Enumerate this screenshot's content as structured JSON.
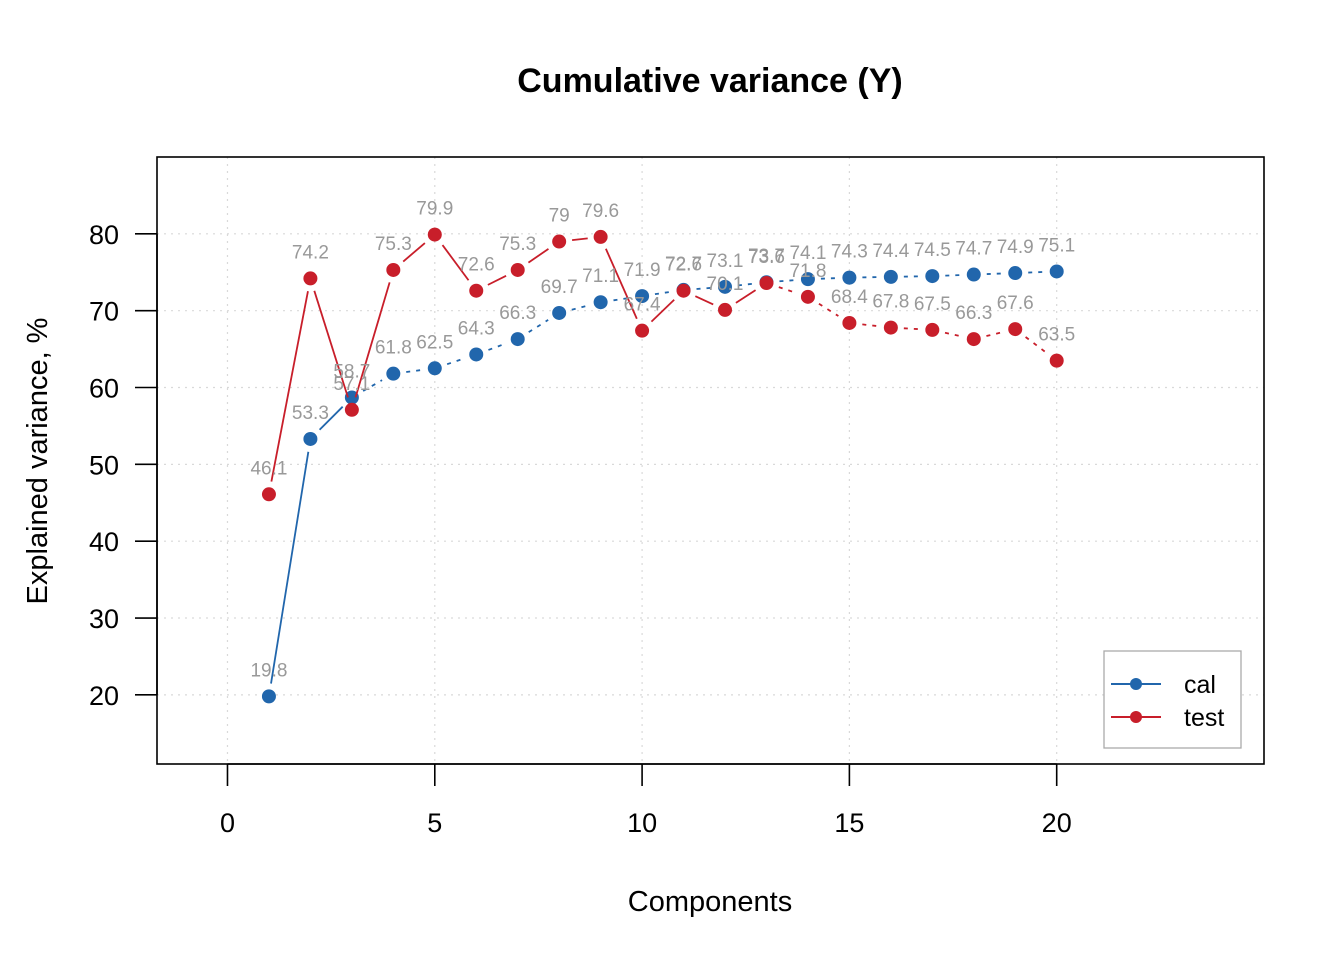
{
  "chart_data": {
    "type": "line",
    "title": "Cumulative variance (Y)",
    "xlabel": "Components",
    "ylabel": "Explained variance, %",
    "xlim": [
      -1.7,
      25
    ],
    "ylim": [
      11,
      90
    ],
    "x_ticks": [
      0,
      5,
      10,
      15,
      20
    ],
    "y_ticks": [
      20,
      30,
      40,
      50,
      60,
      70,
      80
    ],
    "grid": true,
    "legend_position": "bottom-right",
    "x": [
      1,
      2,
      3,
      4,
      5,
      6,
      7,
      8,
      9,
      10,
      11,
      12,
      13,
      14,
      15,
      16,
      17,
      18,
      19,
      20
    ],
    "series": [
      {
        "name": "cal",
        "color": "#2166ac",
        "values": [
          19.8,
          53.3,
          58.7,
          61.8,
          62.5,
          64.3,
          66.3,
          69.7,
          71.1,
          71.9,
          72.7,
          73.1,
          73.7,
          74.1,
          74.3,
          74.4,
          74.5,
          74.7,
          74.9,
          75.1
        ],
        "labels": [
          "19.8",
          "53.3",
          "58.7",
          "61.8",
          "62.5",
          "64.3",
          "66.3",
          "69.7",
          "71.1",
          "71.9",
          "72.7",
          "73.1",
          "73.7",
          "74.1",
          "74.3",
          "74.4",
          "74.5",
          "74.7",
          "74.9",
          "75.1"
        ]
      },
      {
        "name": "test",
        "color": "#c81e2a",
        "values": [
          46.1,
          74.2,
          57.1,
          75.3,
          79.9,
          72.6,
          75.3,
          79.0,
          79.6,
          67.4,
          72.6,
          70.1,
          73.6,
          71.8,
          68.4,
          67.8,
          67.5,
          66.3,
          67.6,
          63.5
        ],
        "labels": [
          "46.1",
          "74.2",
          "57.1",
          "75.3",
          "79.9",
          "72.6",
          "75.3",
          "79",
          "79.6",
          "67.4",
          "72.6",
          "70.1",
          "73.6",
          "71.8",
          "68.4",
          "67.8",
          "67.5",
          "66.3",
          "67.6",
          "63.5"
        ]
      }
    ]
  }
}
